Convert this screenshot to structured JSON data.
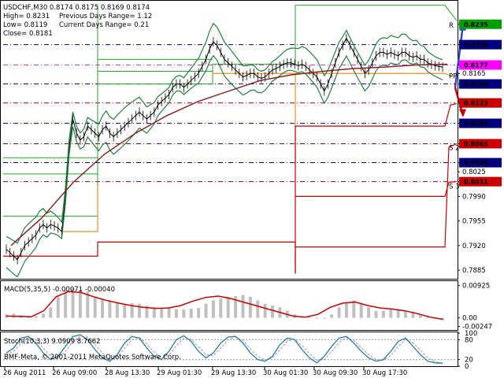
{
  "header": {
    "symbol_line": "USDCHF,M30  0.8174 0.8175 0.8169 0.8174",
    "high": "High= 0.8231",
    "low": "Low= 0.8119",
    "close": "Close= 0.8181",
    "prev_range": "Previous Days Range= 1.12",
    "curr_range": "Current Days Range= 0.21"
  },
  "copyright": "BMF-Meta, © 2001-2011 MetaQuotes Software Corp.",
  "chart_data": [
    {
      "type": "line",
      "panel": "main",
      "symbol": "USDCHF",
      "timeframe": "M30",
      "ohlc_header": {
        "open": 0.8174,
        "high": 0.8175,
        "low": 0.8169,
        "close": 0.8174
      },
      "x_ticks": [
        "26 Aug 2011",
        "26 Aug 09:00",
        "28 Aug 13:30",
        "29 Aug 01:30",
        "29 Aug 13:30",
        "30 Aug 01:30",
        "30 Aug 09:30",
        "30 Aug 17:30"
      ],
      "y_ticks": [
        "0.8235",
        "0.8206",
        "0.8177",
        "0.8165",
        "0.8150",
        "0.8123",
        "0.8094",
        "0.8065",
        "0.8038",
        "0.8025",
        "0.8011",
        "0.7990",
        "0.7955",
        "0.7920",
        "0.7885"
      ],
      "ylim": [
        0.7875,
        0.8265
      ],
      "price_boxes": [
        {
          "value": "0.8235",
          "color": "#00a000"
        },
        {
          "value": "0.8206",
          "color": "#000080"
        },
        {
          "value": "0.8177",
          "color": "#ff00ff"
        },
        {
          "value": "0.8150",
          "color": "#000080"
        },
        {
          "value": "0.8123",
          "color": "#cc0000"
        },
        {
          "value": "0.8094",
          "color": "#000080"
        },
        {
          "value": "0.8065",
          "color": "#cc0000"
        },
        {
          "value": "0.8038",
          "color": "#000080"
        },
        {
          "value": "0.8011",
          "color": "#cc0000"
        }
      ],
      "pivot_labels": [
        "R",
        "PP",
        "S 2",
        "S 3"
      ],
      "close_series": [
        0.7915,
        0.791,
        0.7905,
        0.79,
        0.791,
        0.792,
        0.7925,
        0.793,
        0.7935,
        0.7945,
        0.795,
        0.7945,
        0.795,
        0.7948,
        0.7945,
        0.794,
        0.799,
        0.806,
        0.81,
        0.808,
        0.807,
        0.8075,
        0.809,
        0.8085,
        0.808,
        0.8075,
        0.8085,
        0.809,
        0.808,
        0.8075,
        0.808,
        0.8085,
        0.809,
        0.8095,
        0.81,
        0.8105,
        0.811,
        0.8105,
        0.81,
        0.8105,
        0.811,
        0.812,
        0.8125,
        0.813,
        0.8135,
        0.8145,
        0.815,
        0.815,
        0.8145,
        0.815,
        0.8155,
        0.816,
        0.8165,
        0.8175,
        0.8185,
        0.82,
        0.821,
        0.8205,
        0.8195,
        0.8185,
        0.818,
        0.8175,
        0.817,
        0.8165,
        0.816,
        0.8162,
        0.8165,
        0.8165,
        0.816,
        0.8158,
        0.816,
        0.8165,
        0.817,
        0.8172,
        0.8175,
        0.8178,
        0.818,
        0.818,
        0.8178,
        0.8176,
        0.8178,
        0.8175,
        0.817,
        0.8165,
        0.816,
        0.815,
        0.814,
        0.815,
        0.8165,
        0.818,
        0.8195,
        0.8205,
        0.8215,
        0.8205,
        0.8195,
        0.8185,
        0.8175,
        0.8165,
        0.817,
        0.818,
        0.819,
        0.8195,
        0.8195,
        0.8192,
        0.8195,
        0.8192,
        0.819,
        0.8195,
        0.8195,
        0.819,
        0.8188,
        0.819,
        0.8185,
        0.8185,
        0.818,
        0.8178,
        0.8176,
        0.8175,
        0.8174
      ],
      "ma_series": [
        0.792,
        0.796,
        0.801,
        0.805,
        0.808,
        0.8105,
        0.8125,
        0.814,
        0.8155,
        0.8163,
        0.8168,
        0.8172,
        0.8174,
        0.8177,
        0.8178
      ],
      "guide_arrows": [
        {
          "color": "#3344cc",
          "from": 0.8145,
          "to": 0.8235
        },
        {
          "color": "#cc0000",
          "from": 0.8145,
          "to": 0.8105
        }
      ]
    },
    {
      "type": "bar",
      "panel": "macd",
      "label": "MACD(5,35,5) -0.00071 -0.00040",
      "y_ticks": [
        "0.00925",
        "0.00",
        "-0.00247"
      ],
      "ylim": [
        -0.003,
        0.01
      ],
      "values": [
        0.001,
        0.0012,
        0.0008,
        0.0006,
        0.0005,
        0.0012,
        0.003,
        0.006,
        0.008,
        0.0085,
        0.008,
        0.0075,
        0.006,
        0.0055,
        0.005,
        0.0045,
        0.004,
        0.0042,
        0.004,
        0.0035,
        0.003,
        0.0028,
        0.003,
        0.0025,
        0.0024,
        0.0026,
        0.0028,
        0.004,
        0.005,
        0.0055,
        0.006,
        0.0062,
        0.0065,
        0.006,
        0.005,
        0.004,
        0.0035,
        0.003,
        0.002,
        0.001,
        0.0005,
        0.0002,
        0.0,
        -0.0002,
        0.001,
        0.003,
        0.0045,
        0.005,
        0.004,
        0.003,
        0.002,
        0.002,
        0.0025,
        0.0022,
        0.002,
        0.0018,
        0.001,
        0.0005,
        -0.0002,
        -0.0007
      ],
      "signal": [
        0.0005,
        0.0004,
        0.0003,
        0.002,
        0.006,
        0.0075,
        0.0072,
        0.006,
        0.005,
        0.0042,
        0.0035,
        0.003,
        0.0027,
        0.0028,
        0.0035,
        0.0048,
        0.0058,
        0.0062,
        0.0055,
        0.0045,
        0.0035,
        0.0025,
        0.0015,
        0.0005,
        0.0002,
        0.001,
        0.003,
        0.0042,
        0.0045,
        0.0035,
        0.0028,
        0.0025,
        0.002,
        0.0012,
        0.0002,
        -0.0004
      ]
    },
    {
      "type": "line",
      "panel": "stochastic",
      "label": "Stoch(10,3,3) 9.0909 8.7662",
      "y_ticks": [
        "100",
        "80",
        "20",
        "0"
      ],
      "ylim": [
        0,
        100
      ],
      "main": [
        40,
        55,
        85,
        90,
        70,
        40,
        20,
        30,
        60,
        90,
        95,
        80,
        50,
        25,
        15,
        35,
        70,
        90,
        85,
        55,
        30,
        20,
        45,
        80,
        92,
        75,
        45,
        25,
        40,
        70,
        88,
        90,
        70,
        40,
        20,
        15,
        30,
        65,
        85,
        80,
        50,
        25,
        10,
        30,
        60,
        85,
        90,
        70,
        45,
        25,
        15,
        20,
        45,
        75,
        85,
        60,
        35,
        15,
        10,
        9
      ],
      "signal": [
        35,
        45,
        70,
        85,
        80,
        55,
        30,
        25,
        45,
        75,
        90,
        88,
        65,
        40,
        22,
        28,
        55,
        80,
        87,
        68,
        42,
        25,
        33,
        62,
        85,
        82,
        58,
        35,
        32,
        55,
        80,
        88,
        78,
        52,
        30,
        18,
        25,
        50,
        75,
        82,
        62,
        38,
        18,
        20,
        45,
        72,
        86,
        78,
        56,
        35,
        20,
        18,
        32,
        60,
        80,
        70,
        48,
        25,
        13,
        9
      ]
    }
  ]
}
